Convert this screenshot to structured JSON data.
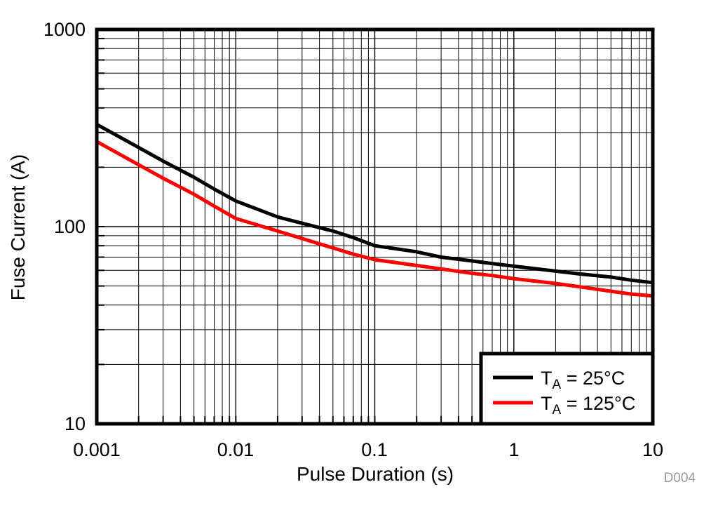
{
  "figure": {
    "watermark": "D004"
  },
  "axes": {
    "x": {
      "title": "Pulse Duration (s)",
      "scale": "log",
      "ticks": [
        "0.001",
        "0.01",
        "0.1",
        "1",
        "10"
      ]
    },
    "y": {
      "title": "Fuse Current (A)",
      "scale": "log",
      "ticks": [
        "1000",
        "100",
        "10"
      ]
    }
  },
  "legend": {
    "items": [
      {
        "t": "T",
        "sub": "A",
        "rest": " = 25°C",
        "color": "#000000"
      },
      {
        "t": "T",
        "sub": "A",
        "rest": " = 125°C",
        "color": "#ff0000"
      }
    ]
  },
  "chart_data": {
    "type": "line",
    "title": "",
    "xlabel": "Pulse Duration (s)",
    "ylabel": "Fuse Current (A)",
    "xscale": "log",
    "yscale": "log",
    "xlim": [
      0.001,
      10
    ],
    "ylim": [
      10,
      1000
    ],
    "grid": true,
    "legend_position": "lower right",
    "x": [
      0.001,
      0.002,
      0.003,
      0.005,
      0.007,
      0.01,
      0.02,
      0.03,
      0.05,
      0.07,
      0.1,
      0.2,
      0.3,
      0.5,
      0.7,
      1,
      2,
      3,
      5,
      7,
      10
    ],
    "series": [
      {
        "name": "TA = 25°C",
        "color": "#000000",
        "values": [
          330,
          252,
          215,
          178,
          155,
          135,
          112,
          104,
          95,
          88,
          80,
          74.5,
          70,
          67,
          65,
          63,
          59.5,
          57.5,
          55.5,
          53.5,
          52
        ]
      },
      {
        "name": "TA = 125°C",
        "color": "#ff0000",
        "values": [
          270,
          206,
          176,
          146,
          127,
          110,
          95,
          87,
          78,
          72.5,
          68,
          63.5,
          61,
          58,
          56.5,
          54.5,
          51.5,
          49.5,
          47,
          45.5,
          44.5
        ]
      }
    ]
  }
}
